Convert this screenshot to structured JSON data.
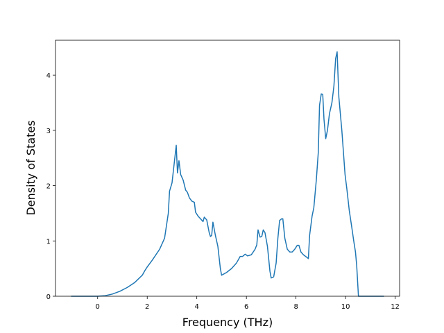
{
  "chart_data": {
    "type": "line",
    "x_label": "Frequency (THz)",
    "y_label": "Density of States",
    "x": [
      -1.07,
      0,
      0.3,
      0.6,
      0.9,
      1.2,
      1.5,
      1.8,
      1.9,
      2.0,
      2.2,
      2.5,
      2.7,
      2.75,
      2.85,
      2.9,
      3.0,
      3.05,
      3.17,
      3.22,
      3.28,
      3.35,
      3.45,
      3.55,
      3.62,
      3.7,
      3.8,
      3.9,
      3.95,
      4.05,
      4.15,
      4.25,
      4.3,
      4.4,
      4.5,
      4.55,
      4.6,
      4.65,
      4.75,
      4.85,
      4.95,
      5.0,
      5.2,
      5.4,
      5.6,
      5.75,
      5.85,
      5.95,
      6.05,
      6.2,
      6.35,
      6.42,
      6.47,
      6.55,
      6.62,
      6.68,
      6.75,
      6.85,
      6.95,
      7.0,
      7.1,
      7.2,
      7.27,
      7.34,
      7.42,
      7.47,
      7.55,
      7.65,
      7.75,
      7.85,
      7.95,
      8.05,
      8.12,
      8.2,
      8.3,
      8.45,
      8.5,
      8.55,
      8.65,
      8.72,
      8.82,
      8.9,
      8.95,
      9.02,
      9.08,
      9.13,
      9.2,
      9.27,
      9.35,
      9.45,
      9.53,
      9.6,
      9.66,
      9.73,
      9.85,
      9.98,
      10.05,
      10.15,
      10.25,
      10.33,
      10.4,
      10.45,
      10.52,
      11.55
    ],
    "series": [
      {
        "name": "DOS",
        "color": "#1f77b4",
        "values": [
          0,
          0,
          0.01,
          0.04,
          0.09,
          0.16,
          0.25,
          0.38,
          0.46,
          0.53,
          0.65,
          0.85,
          1.05,
          1.2,
          1.5,
          1.9,
          2.05,
          2.25,
          2.73,
          2.23,
          2.45,
          2.2,
          2.1,
          1.92,
          1.88,
          1.78,
          1.72,
          1.7,
          1.52,
          1.45,
          1.4,
          1.35,
          1.43,
          1.38,
          1.15,
          1.08,
          1.1,
          1.34,
          1.1,
          0.9,
          0.5,
          0.38,
          0.43,
          0.5,
          0.6,
          0.72,
          0.72,
          0.76,
          0.73,
          0.75,
          0.85,
          0.93,
          1.2,
          1.07,
          1.08,
          1.2,
          1.15,
          0.9,
          0.45,
          0.33,
          0.35,
          0.6,
          1.05,
          1.37,
          1.4,
          1.4,
          1.05,
          0.85,
          0.8,
          0.8,
          0.85,
          0.92,
          0.92,
          0.8,
          0.75,
          0.7,
          0.68,
          1.1,
          1.45,
          1.6,
          2.1,
          2.6,
          3.45,
          3.66,
          3.65,
          3.2,
          2.85,
          3.0,
          3.3,
          3.5,
          3.8,
          4.3,
          4.42,
          3.6,
          3.0,
          2.2,
          1.95,
          1.55,
          1.25,
          1.0,
          0.8,
          0.55,
          0,
          0
        ]
      }
    ],
    "xlim": [
      -1.7,
      12.18
    ],
    "xticks": [
      0,
      2,
      4,
      6,
      8,
      10,
      12
    ],
    "ylim": [
      0,
      4.63
    ],
    "yticks": [
      0,
      1,
      2,
      3,
      4
    ],
    "grid": false
  }
}
